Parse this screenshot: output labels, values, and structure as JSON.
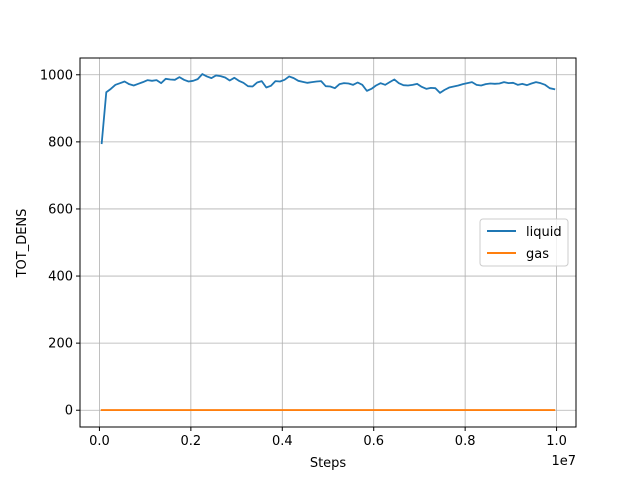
{
  "chart_data": {
    "type": "line",
    "xlabel": "Steps",
    "ylabel": "TOT_DENS",
    "x_offset_label": "1e7",
    "x_range": [
      -0.0425,
      1.0425
    ],
    "y_range": [
      -50,
      1050
    ],
    "x_ticks": [
      0.0,
      0.2,
      0.4,
      0.6,
      0.8,
      1.0
    ],
    "x_tick_labels": [
      "0.0",
      "0.2",
      "0.4",
      "0.6",
      "0.8",
      "1.0"
    ],
    "y_ticks": [
      0,
      200,
      400,
      600,
      800,
      1000
    ],
    "y_tick_labels": [
      "0",
      "200",
      "400",
      "600",
      "800",
      "1000"
    ],
    "grid": true,
    "legend_position": "center-right",
    "x_start": 0.005,
    "x_step": 0.01,
    "series": [
      {
        "name": "liquid",
        "color": "#1f77b4",
        "values": [
          796,
          948,
          958,
          970,
          975,
          980,
          972,
          968,
          973,
          978,
          984,
          982,
          984,
          975,
          988,
          986,
          985,
          993,
          985,
          980,
          982,
          987,
          1002,
          995,
          990,
          998,
          996,
          992,
          983,
          991,
          982,
          976,
          966,
          965,
          977,
          981,
          962,
          967,
          981,
          980,
          985,
          995,
          990,
          982,
          979,
          976,
          978,
          980,
          981,
          966,
          965,
          960,
          972,
          975,
          974,
          970,
          977,
          970,
          952,
          958,
          968,
          975,
          970,
          978,
          986,
          975,
          969,
          968,
          970,
          973,
          964,
          958,
          961,
          960,
          946,
          955,
          962,
          965,
          968,
          972,
          975,
          978,
          970,
          968,
          972,
          974,
          973,
          974,
          978,
          975,
          976,
          970,
          973,
          969,
          974,
          978,
          975,
          970,
          960,
          957
        ]
      },
      {
        "name": "gas",
        "color": "#ff7f0e",
        "values": [
          0.5,
          0.5,
          0.5,
          0.5,
          0.5,
          0.5,
          0.5,
          0.5,
          0.5,
          0.5,
          0.5,
          0.5,
          0.5,
          0.5,
          0.5,
          0.5,
          0.5,
          0.5,
          0.5,
          0.5,
          0.5,
          0.5,
          0.5,
          0.5,
          0.5,
          0.5,
          0.5,
          0.5,
          0.5,
          0.5,
          0.5,
          0.5,
          0.5,
          0.5,
          0.5,
          0.5,
          0.5,
          0.5,
          0.5,
          0.5,
          0.5,
          0.5,
          0.5,
          0.5,
          0.5,
          0.5,
          0.5,
          0.5,
          0.5,
          0.5,
          0.5,
          0.5,
          0.5,
          0.5,
          0.5,
          0.5,
          0.5,
          0.5,
          0.5,
          0.5,
          0.5,
          0.5,
          0.5,
          0.5,
          0.5,
          0.5,
          0.5,
          0.5,
          0.5,
          0.5,
          0.5,
          0.5,
          0.5,
          0.5,
          0.5,
          0.5,
          0.5,
          0.5,
          0.5,
          0.5,
          0.5,
          0.5,
          0.5,
          0.5,
          0.5,
          0.5,
          0.5,
          0.5,
          0.5,
          0.5,
          0.5,
          0.5,
          0.5,
          0.5,
          0.5,
          0.5,
          0.5,
          0.5,
          0.5,
          0.5
        ]
      }
    ]
  }
}
